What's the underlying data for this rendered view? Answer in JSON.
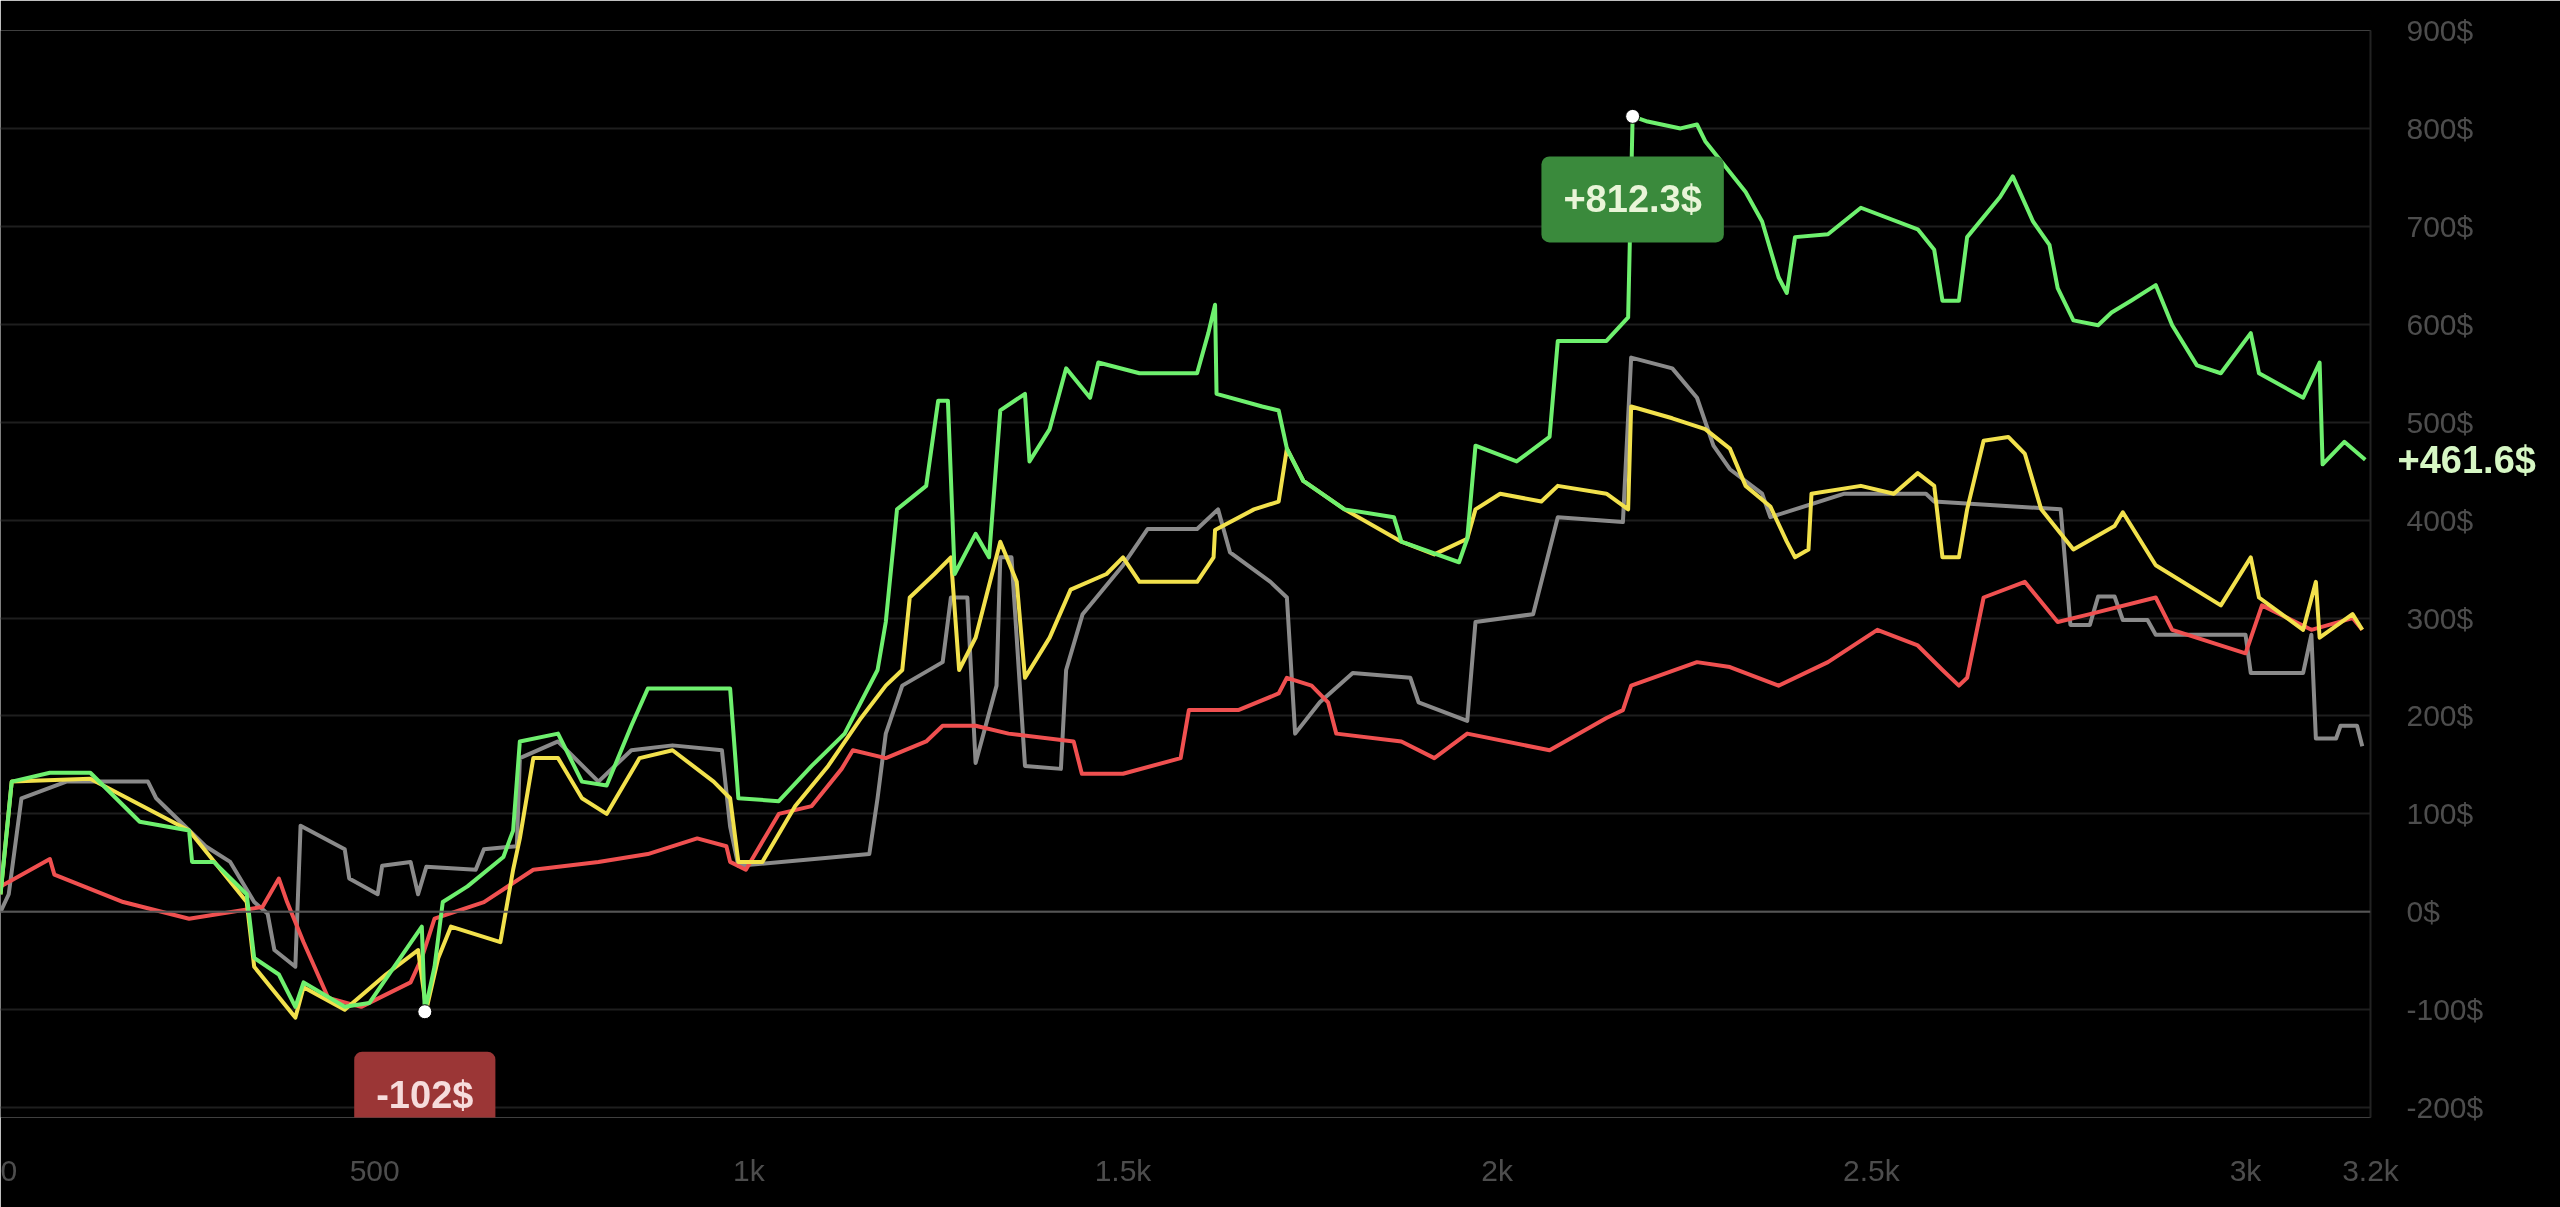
{
  "chart_data": {
    "type": "line",
    "xlim": [
      0,
      3167
    ],
    "ylim": [
      -210,
      900
    ],
    "xticks": [
      0,
      500,
      {
        "value": 1000,
        "label": "1k"
      },
      {
        "value": 1500,
        "label": "1.5k"
      },
      {
        "value": 2000,
        "label": "2k"
      },
      {
        "value": 2500,
        "label": "2.5k"
      },
      {
        "value": 3000,
        "label": "3k"
      },
      {
        "value": 3167,
        "label": "3.2k"
      }
    ],
    "yticks": [
      {
        "value": -200,
        "label": "-200$"
      },
      {
        "value": -100,
        "label": "-100$"
      },
      {
        "value": 0,
        "label": "0$"
      },
      {
        "value": 100,
        "label": "100$"
      },
      {
        "value": 200,
        "label": "200$"
      },
      {
        "value": 300,
        "label": "300$"
      },
      {
        "value": 400,
        "label": "400$"
      },
      {
        "value": 500,
        "label": "500$"
      },
      {
        "value": 600,
        "label": "600$"
      },
      {
        "value": 700,
        "label": "700$"
      },
      {
        "value": 800,
        "label": "800$"
      },
      {
        "value": 900,
        "label": "900$"
      }
    ],
    "grid": "y",
    "line_style": "solid",
    "marker": "none",
    "ref_lines": [
      {
        "axis": "y",
        "value": 0,
        "color": "#555555"
      }
    ],
    "annotations": [
      {
        "text": "+812.3$",
        "x": 2181,
        "y": 812.3
      },
      {
        "text": "-102$",
        "x": 567,
        "y": -102
      },
      "+461.6$"
    ],
    "series": [
      {
        "color": "#8a8a8a",
        "x": [
          0,
          11,
          28,
          88,
          197,
          208,
          274,
          307,
          339,
          357,
          366,
          394,
          401,
          460,
          466,
          504,
          510,
          548,
          558,
          569,
          635,
          646,
          690,
          694,
          745,
          799,
          843,
          898,
          964,
          975,
          986,
          1161,
          1172,
          1183,
          1205,
          1259,
          1270,
          1292,
          1303,
          1331,
          1336,
          1351,
          1369,
          1417,
          1424,
          1446,
          1500,
          1533,
          1599,
          1627,
          1643,
          1697,
          1719,
          1730,
          1763,
          1807,
          1884,
          1895,
          1960,
          1971,
          2048,
          2081,
          2168,
          2179,
          2234,
          2267,
          2289,
          2311,
          2354,
          2365,
          2464,
          2573,
          2584,
          2753,
          2766,
          2792,
          2803,
          2825,
          2836,
          2869,
          2880,
          3000,
          3007,
          3077,
          3088,
          3094,
          3121,
          3127,
          3149,
          3156
        ],
        "values": [
          0,
          18,
          116,
          133,
          133,
          116,
          67,
          51,
          10,
          -2,
          -39,
          -56,
          88,
          64,
          34,
          18,
          47,
          51,
          18,
          46,
          43,
          64,
          67,
          157,
          174,
          133,
          165,
          170,
          165,
          87,
          47,
          59,
          116,
          182,
          231,
          255,
          321,
          321,
          152,
          231,
          362,
          362,
          149,
          146,
          247,
          304,
          354,
          391,
          391,
          411,
          367,
          337,
          321,
          182,
          214,
          244,
          239,
          214,
          195,
          296,
          304,
          403,
          398,
          566,
          555,
          525,
          476,
          452,
          427,
          403,
          427,
          427,
          419,
          411,
          293,
          293,
          322,
          322,
          298,
          298,
          283,
          283,
          244,
          244,
          283,
          177,
          177,
          190,
          190,
          169
        ]
      },
      {
        "color": "#f05050",
        "x": [
          0,
          66,
          72,
          164,
          252,
          350,
          372,
          383,
          405,
          438,
          482,
          548,
          563,
          580,
          646,
          712,
          799,
          865,
          931,
          970,
          975,
          996,
          1040,
          1084,
          1124,
          1139,
          1183,
          1237,
          1259,
          1303,
          1347,
          1434,
          1445,
          1500,
          1577,
          1588,
          1654,
          1708,
          1719,
          1752,
          1774,
          1785,
          1872,
          1916,
          1960,
          2070,
          2146,
          2168,
          2179,
          2267,
          2311,
          2376,
          2442,
          2508,
          2562,
          2595,
          2617,
          2628,
          2650,
          2705,
          2749,
          2792,
          2880,
          2902,
          3000,
          3022,
          3088,
          3143,
          3156
        ],
        "values": [
          26,
          54,
          38,
          10,
          -7,
          5,
          34,
          10,
          -31,
          -88,
          -97,
          -72,
          -47,
          -7,
          10,
          43,
          51,
          59,
          75,
          67,
          51,
          43,
          100,
          108,
          146,
          165,
          157,
          174,
          190,
          190,
          182,
          174,
          141,
          141,
          157,
          206,
          206,
          223,
          239,
          231,
          214,
          182,
          174,
          157,
          182,
          165,
          198,
          206,
          231,
          255,
          250,
          231,
          255,
          288,
          272,
          247,
          231,
          239,
          321,
          337,
          296,
          304,
          321,
          288,
          264,
          313,
          288,
          300,
          288
        ]
      },
      {
        "color": "#f2e14c",
        "x": [
          0,
          15,
          120,
          252,
          329,
          339,
          394,
          405,
          460,
          515,
          558,
          569,
          585,
          602,
          668,
          685,
          694,
          712,
          745,
          777,
          810,
          854,
          898,
          953,
          975,
          986,
          1018,
          1062,
          1106,
          1150,
          1183,
          1205,
          1215,
          1248,
          1270,
          1281,
          1303,
          1336,
          1358,
          1369,
          1402,
          1430,
          1478,
          1500,
          1522,
          1599,
          1621,
          1623,
          1675,
          1708,
          1719,
          1741,
          1796,
          1872,
          1916,
          1960,
          1971,
          2004,
          2059,
          2081,
          2146,
          2175,
          2179,
          2234,
          2278,
          2311,
          2332,
          2365,
          2387,
          2398,
          2416,
          2420,
          2486,
          2530,
          2562,
          2584,
          2595,
          2617,
          2628,
          2650,
          2683,
          2705,
          2727,
          2770,
          2825,
          2836,
          2880,
          2967,
          3007,
          3018,
          3077,
          3094,
          3099,
          3143,
          3156
        ],
        "values": [
          18,
          133,
          136,
          83,
          10,
          -56,
          -108,
          -77,
          -100,
          -64,
          -39,
          -100,
          -47,
          -15,
          -31,
          43,
          75,
          157,
          157,
          116,
          100,
          157,
          165,
          133,
          116,
          51,
          51,
          108,
          149,
          198,
          231,
          247,
          321,
          345,
          362,
          247,
          280,
          378,
          337,
          239,
          280,
          329,
          345,
          362,
          337,
          337,
          362,
          390,
          411,
          419,
          473,
          440,
          411,
          378,
          365,
          381,
          411,
          427,
          419,
          435,
          427,
          411,
          516,
          504,
          493,
          473,
          435,
          414,
          378,
          362,
          370,
          427,
          435,
          427,
          448,
          435,
          362,
          362,
          411,
          481,
          485,
          468,
          411,
          370,
          394,
          408,
          354,
          313,
          362,
          321,
          288,
          337,
          280,
          304,
          288
        ]
      },
      {
        "color": "#6ef06e",
        "x": [
          0,
          15,
          66,
          120,
          186,
          252,
          256,
          285,
          329,
          339,
          372,
          394,
          405,
          460,
          493,
          537,
          563,
          567,
          580,
          591,
          624,
          672,
          685,
          694,
          745,
          777,
          810,
          843,
          865,
          953,
          975,
          986,
          1040,
          1084,
          1128,
          1172,
          1183,
          1198,
          1237,
          1253,
          1266,
          1275,
          1303,
          1321,
          1336,
          1369,
          1375,
          1402,
          1424,
          1456,
          1467,
          1522,
          1599,
          1614,
          1623,
          1625,
          1686,
          1708,
          1719,
          1741,
          1796,
          1862,
          1872,
          1949,
          1960,
          1971,
          2026,
          2070,
          2081,
          2146,
          2175,
          2181,
          2201,
          2245,
          2267,
          2278,
          2332,
          2354,
          2376,
          2387,
          2398,
          2442,
          2486,
          2562,
          2584,
          2595,
          2617,
          2628,
          2672,
          2689,
          2716,
          2738,
          2749,
          2770,
          2803,
          2821,
          2847,
          2880,
          2902,
          2935,
          2967,
          3007,
          3018,
          3077,
          3099,
          3103,
          3132,
          3160
        ],
        "values": [
          18,
          133,
          142,
          142,
          92,
          83,
          51,
          51,
          18,
          -47,
          -64,
          -97,
          -72,
          -97,
          -93,
          -44,
          -15,
          -102,
          -56,
          10,
          26,
          56,
          83,
          174,
          182,
          133,
          129,
          190,
          228,
          228,
          228,
          116,
          113,
          149,
          182,
          247,
          296,
          411,
          435,
          522,
          522,
          345,
          386,
          362,
          512,
          529,
          460,
          493,
          555,
          525,
          561,
          550,
          550,
          591,
          620,
          529,
          516,
          512,
          473,
          440,
          411,
          403,
          378,
          357,
          381,
          476,
          460,
          485,
          583,
          583,
          607,
          812.3,
          807,
          800,
          804,
          787,
          735,
          705,
          648,
          632,
          689,
          692,
          719,
          697,
          676,
          624,
          624,
          689,
          730,
          751,
          705,
          681,
          637,
          604,
          599,
          612,
          624,
          640,
          599,
          558,
          550,
          591,
          550,
          525,
          561,
          457,
          480,
          461.6
        ]
      }
    ]
  }
}
